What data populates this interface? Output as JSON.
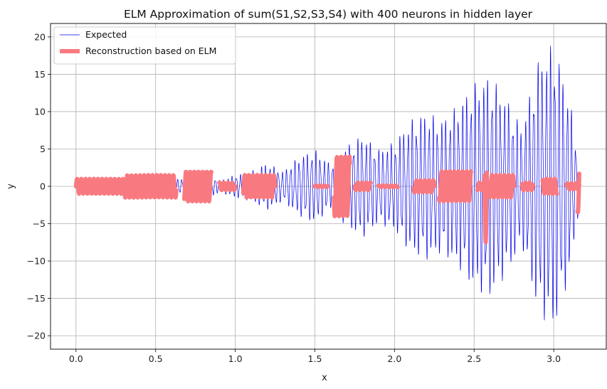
{
  "chart_data": {
    "type": "line",
    "title": "ELM Approximation of sum(S1,S2,S3,S4) with 400 neurons in hidden layer",
    "xlabel": "x",
    "ylabel": "y",
    "xlim": [
      -0.16,
      3.33
    ],
    "ylim": [
      -21.8,
      21.8
    ],
    "xticks": [
      0.0,
      0.5,
      1.0,
      1.5,
      2.0,
      2.5,
      3.0
    ],
    "xtick_labels": [
      "0.0",
      "0.5",
      "1.0",
      "1.5",
      "2.0",
      "2.5",
      "3.0"
    ],
    "yticks": [
      -20,
      -15,
      -10,
      -5,
      0,
      5,
      10,
      15,
      20
    ],
    "ytick_labels": [
      "−20",
      "−15",
      "−10",
      "−5",
      "0",
      "5",
      "10",
      "15",
      "20"
    ],
    "grid": true,
    "legend_position": "upper-left",
    "colors": {
      "expected": "#0000ee",
      "reconstruction": "#f87a80"
    },
    "series": [
      {
        "name": "Expected",
        "style": "thin-line",
        "description_envelope": {
          "x": [
            0.0,
            0.1,
            0.2,
            0.3,
            0.4,
            0.5,
            0.6,
            0.7,
            0.8,
            0.9,
            1.0,
            1.1,
            1.2,
            1.3,
            1.4,
            1.5,
            1.6,
            1.7,
            1.8,
            1.9,
            2.0,
            2.1,
            2.2,
            2.3,
            2.4,
            2.5,
            2.6,
            2.7,
            2.8,
            2.9,
            3.0,
            3.1,
            3.16
          ],
          "amplitude": [
            0.3,
            1.0,
            1.0,
            0.5,
            1.5,
            1.3,
            0.8,
            1.2,
            2.0,
            0.8,
            1.5,
            2.0,
            3.2,
            2.0,
            4.0,
            5.0,
            3.0,
            5.5,
            7.0,
            5.0,
            6.0,
            9.0,
            10.0,
            9.0,
            11.0,
            14.0,
            15.0,
            12.0,
            8.0,
            17.0,
            19.5,
            12.0,
            3.0
          ]
        }
      },
      {
        "name": "Reconstruction based on ELM",
        "style": "thick-line",
        "segments": [
          {
            "x": [
              0.0,
              0.3
            ],
            "amplitude": 1.0
          },
          {
            "x": [
              0.3,
              0.63
            ],
            "amplitude": 1.5
          },
          {
            "x": [
              0.68,
              0.85
            ],
            "amplitude": 2.0
          },
          {
            "x": [
              0.9,
              1.0
            ],
            "amplitude": 0.5
          },
          {
            "x": [
              1.05,
              1.25
            ],
            "amplitude": 1.5
          },
          {
            "x": [
              1.5,
              1.58
            ],
            "amplitude": 0.1
          },
          {
            "x": [
              1.62,
              1.72
            ],
            "amplitude": 4.0
          },
          {
            "x": [
              1.75,
              1.85
            ],
            "amplitude": 0.5
          },
          {
            "x": [
              1.9,
              2.02
            ],
            "amplitude": 0.1
          },
          {
            "x": [
              2.12,
              2.25
            ],
            "amplitude": 0.8
          },
          {
            "x": [
              2.28,
              2.48
            ],
            "amplitude": 2.0
          },
          {
            "x": [
              2.52,
              2.6
            ],
            "amplitude": 0.5
          },
          {
            "x": [
              2.565,
              2.58
            ],
            "amplitude": 7.5
          },
          {
            "x": [
              2.6,
              2.75
            ],
            "amplitude": 1.5
          },
          {
            "x": [
              2.8,
              2.87
            ],
            "amplitude": 0.5
          },
          {
            "x": [
              2.93,
              3.02
            ],
            "amplitude": 1.0
          },
          {
            "x": [
              3.08,
              3.16
            ],
            "amplitude": 0.4
          },
          {
            "x": [
              3.15,
              3.16
            ],
            "amplitude": 3.5
          }
        ]
      }
    ]
  }
}
